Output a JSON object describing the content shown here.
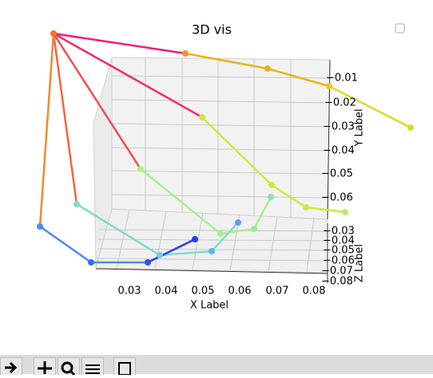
{
  "window": {
    "title": "3D vis"
  },
  "axes": {
    "x_label": "X Label",
    "x_ticks": [
      "0.03",
      "0.04",
      "0.05",
      "0.06",
      "0.07",
      "0.08"
    ],
    "y_label": "Y Label",
    "y_ticks": [
      "−0.01",
      "−0.02",
      "−0.03",
      "−0.04",
      "−0.05",
      "−0.06"
    ],
    "z_label": "Z Label",
    "z_ticks": [
      "−0.03",
      "−0.04",
      "−0.05",
      "−0.06",
      "−0.07",
      "−0.08"
    ]
  }
}
